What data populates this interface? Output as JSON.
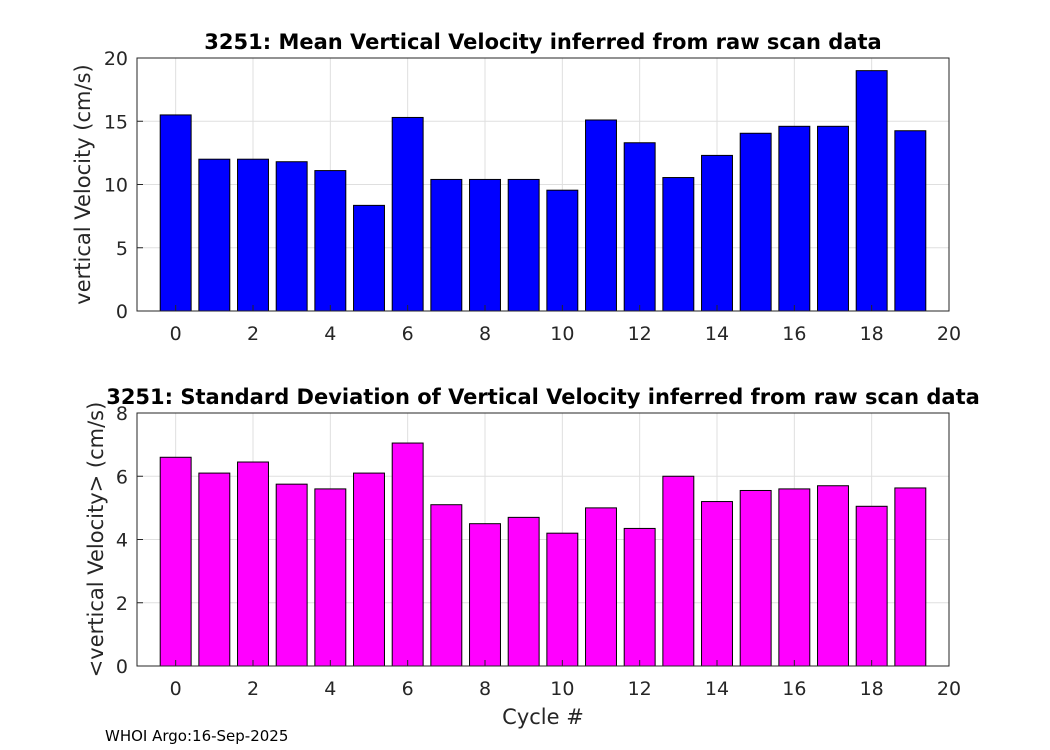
{
  "footer": "WHOI Argo:16-Sep-2025",
  "chart_data": [
    {
      "type": "bar",
      "title": "3251: Mean Vertical Velocity inferred from raw scan data",
      "xlabel": "",
      "ylabel": "vertical Velocity (cm/s)",
      "x": [
        0,
        1,
        2,
        3,
        4,
        5,
        6,
        7,
        8,
        9,
        10,
        11,
        12,
        13,
        14,
        15,
        16,
        17,
        18,
        19
      ],
      "values": [
        15.5,
        12.0,
        12.0,
        11.8,
        11.1,
        8.35,
        15.3,
        10.4,
        10.4,
        10.4,
        9.55,
        15.1,
        13.3,
        10.55,
        12.3,
        14.05,
        14.6,
        14.6,
        19.0,
        14.25
      ],
      "xlim": [
        -1,
        20
      ],
      "ylim": [
        0,
        20
      ],
      "xticks": [
        0,
        2,
        4,
        6,
        8,
        10,
        12,
        14,
        16,
        18,
        20
      ],
      "yticks": [
        0,
        5,
        10,
        15,
        20
      ],
      "color": "#0000ff",
      "grid": true
    },
    {
      "type": "bar",
      "title": "3251: Standard Deviation of Vertical Velocity inferred from raw scan data",
      "xlabel": "Cycle #",
      "ylabel": "<vertical Velocity> (cm/s)",
      "x": [
        0,
        1,
        2,
        3,
        4,
        5,
        6,
        7,
        8,
        9,
        10,
        11,
        12,
        13,
        14,
        15,
        16,
        17,
        18,
        19
      ],
      "values": [
        6.6,
        6.1,
        6.45,
        5.75,
        5.6,
        6.1,
        7.05,
        5.1,
        4.5,
        4.7,
        4.2,
        5.0,
        4.35,
        6.0,
        5.2,
        5.55,
        5.6,
        5.7,
        5.05,
        5.63
      ],
      "xlim": [
        -1,
        20
      ],
      "ylim": [
        0,
        8
      ],
      "xticks": [
        0,
        2,
        4,
        6,
        8,
        10,
        12,
        14,
        16,
        18,
        20
      ],
      "yticks": [
        0,
        2,
        4,
        6,
        8
      ],
      "color": "#ff00ff",
      "grid": true
    }
  ]
}
